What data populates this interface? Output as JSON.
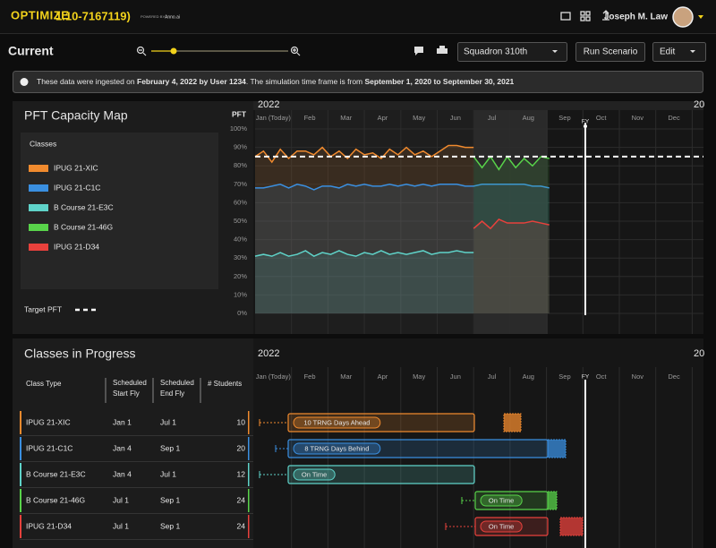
{
  "header": {
    "logo": "OPTIMIZE",
    "version": "1.10-7167119)",
    "powered": "POWERED BY",
    "brand": "Anno.ai",
    "user": "Joseph M. Law"
  },
  "toolbar": {
    "view": "Current",
    "squadron": "Squadron 310th",
    "run": "Run Scenario",
    "edit": "Edit"
  },
  "notice": {
    "text1": "These data were ingested on ",
    "bold1": "February 4, 2022 by User 1234",
    "text2": ". The simulation time frame is from ",
    "bold2": "September 1, 2020 to September 30, 2021"
  },
  "chart_data": {
    "type": "line",
    "title": "PFT Capacity Map",
    "legend_title": "Classes",
    "ylabel": "PFT",
    "year": "2022",
    "next_year": "20",
    "fy_label": "FY",
    "months": [
      "Jan (Today)",
      "Feb",
      "Mar",
      "Apr",
      "May",
      "Jun",
      "Jul",
      "Aug",
      "Sep",
      "Oct",
      "Nov",
      "Dec"
    ],
    "ylim": [
      0,
      100
    ],
    "yticks": [
      {
        "value": 0,
        "label": "0%"
      },
      {
        "value": 10,
        "label": "10%"
      },
      {
        "value": 20,
        "label": "20%"
      },
      {
        "value": 30,
        "label": "30%"
      },
      {
        "value": 40,
        "label": "40%"
      },
      {
        "value": 50,
        "label": "50%"
      },
      {
        "value": 60,
        "label": "60%"
      },
      {
        "value": 70,
        "label": "70%"
      },
      {
        "value": 80,
        "label": "80%"
      },
      {
        "value": 90,
        "label": "90%"
      },
      {
        "value": 100,
        "label": "100%"
      }
    ],
    "grid": true,
    "target": {
      "label": "Target PFT",
      "value": 85
    },
    "series": [
      {
        "name": "IPUG 21-XIC",
        "color": "#f08a2e",
        "values": [
          85,
          88,
          82,
          89,
          84,
          88,
          88,
          86,
          90,
          85,
          88,
          84,
          89,
          86,
          87,
          84,
          89,
          86,
          90,
          86,
          88,
          85,
          88,
          91,
          91,
          90,
          90,
          null,
          null,
          null,
          null,
          null,
          null,
          null,
          null,
          null
        ]
      },
      {
        "name": "IPUG 21-C1C",
        "color": "#3a8fe0",
        "values": [
          68,
          68,
          69,
          70,
          68,
          70,
          69,
          67,
          69,
          69,
          68,
          70,
          69,
          70,
          69,
          69,
          70,
          69,
          70,
          69,
          70,
          69,
          70,
          70,
          70,
          69,
          69,
          70,
          70,
          70,
          70,
          70,
          70,
          69,
          69,
          68
        ]
      },
      {
        "name": "B Course 21-E3C",
        "color": "#5fd3c9",
        "values": [
          31,
          32,
          31,
          33,
          31,
          32,
          34,
          31,
          33,
          32,
          34,
          32,
          31,
          33,
          32,
          34,
          32,
          33,
          32,
          33,
          34,
          32,
          33,
          33,
          34,
          33,
          33,
          null,
          null,
          null,
          null,
          null,
          null,
          null,
          null,
          null
        ]
      },
      {
        "name": "B Course 21-46G",
        "color": "#58d34a",
        "values": [
          null,
          null,
          null,
          null,
          null,
          null,
          null,
          null,
          null,
          null,
          null,
          null,
          null,
          null,
          null,
          null,
          null,
          null,
          null,
          null,
          null,
          null,
          null,
          null,
          null,
          null,
          85,
          79,
          85,
          78,
          85,
          79,
          84,
          80,
          85,
          84
        ]
      },
      {
        "name": "IPUG 21-D34",
        "color": "#e8413c",
        "values": [
          null,
          null,
          null,
          null,
          null,
          null,
          null,
          null,
          null,
          null,
          null,
          null,
          null,
          null,
          null,
          null,
          null,
          null,
          null,
          null,
          null,
          null,
          null,
          null,
          null,
          null,
          46,
          50,
          46,
          51,
          49,
          49,
          49,
          50,
          49,
          48
        ]
      }
    ]
  },
  "progress": {
    "title": "Classes in Progress",
    "columns": [
      {
        "lines": [
          "Class Type"
        ]
      },
      {
        "lines": [
          "Scheduled",
          "Start Fly"
        ]
      },
      {
        "lines": [
          "Scheduled",
          "End Fly"
        ]
      },
      {
        "lines": [
          "# Students"
        ]
      }
    ],
    "rows": [
      {
        "color": "#f08a2e",
        "cells": [
          "IPUG 21-XIC",
          "Jan 1",
          "Jul 1",
          10
        ],
        "status": "10 TRNG Days Ahead"
      },
      {
        "color": "#3a8fe0",
        "cells": [
          "IPUG 21-C1C",
          "Jan 4",
          "Sep 1",
          20
        ],
        "status": "8 TRNG Days Behind"
      },
      {
        "color": "#5fd3c9",
        "cells": [
          "B Course 21-E3C",
          "Jan 4",
          "Jul 1",
          12
        ],
        "status": "On Time"
      },
      {
        "color": "#58d34a",
        "cells": [
          "B Course 21-46G",
          "Jul 1",
          "Sep 1",
          24
        ],
        "status": "On Time"
      },
      {
        "color": "#e8413c",
        "cells": [
          "IPUG 21-D34",
          "Jul 1",
          "Sep 1",
          24
        ],
        "status": "On Time"
      }
    ]
  }
}
